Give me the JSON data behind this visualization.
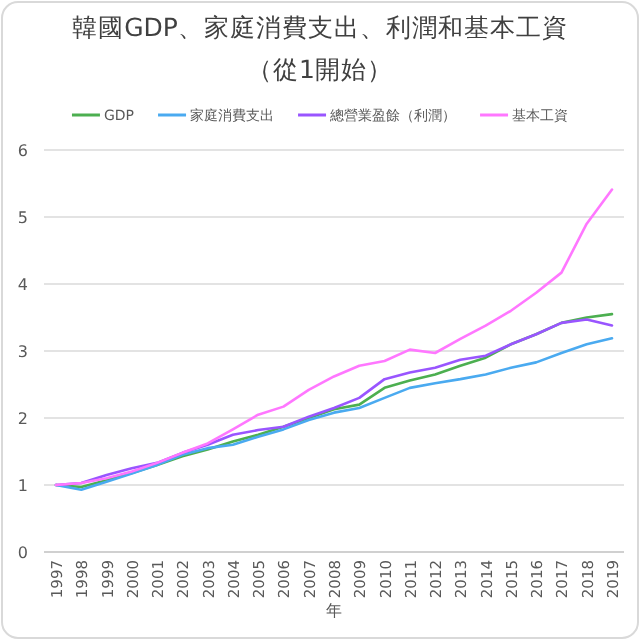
{
  "chart_data": {
    "type": "line",
    "title": "韓國GDP、家庭消費支出、利潤和基本工資",
    "subtitle": "（從1開始）",
    "xlabel": "年",
    "categories": [
      "1997",
      "1998",
      "1999",
      "2000",
      "2001",
      "2002",
      "2003",
      "2004",
      "2005",
      "2006",
      "2007",
      "2008",
      "2009",
      "2010",
      "2011",
      "2012",
      "2013",
      "2014",
      "2015",
      "2016",
      "2017",
      "2018",
      "2019"
    ],
    "ylim": [
      0,
      6
    ],
    "yticks": [
      0,
      1,
      2,
      3,
      4,
      5,
      6
    ],
    "grid": "y",
    "legend": "top",
    "line_style": "solid",
    "marker": "none",
    "series": [
      {
        "name": "GDP",
        "color": "#4caf50",
        "values": [
          1,
          0.97,
          1.07,
          1.18,
          1.3,
          1.43,
          1.53,
          1.65,
          1.75,
          1.87,
          2.0,
          2.13,
          2.2,
          2.45,
          2.56,
          2.65,
          2.78,
          2.9,
          3.1,
          3.25,
          3.42,
          3.5,
          3.55
        ]
      },
      {
        "name": "家庭消費支出",
        "color": "#4aaaf0",
        "values": [
          1.0,
          0.93,
          1.05,
          1.17,
          1.3,
          1.45,
          1.55,
          1.6,
          1.72,
          1.83,
          1.97,
          2.08,
          2.15,
          2.3,
          2.45,
          2.52,
          2.58,
          2.65,
          2.75,
          2.83,
          2.97,
          3.1,
          3.19
        ]
      },
      {
        "name": "總營業盈餘（利潤）",
        "color": "#9955ff",
        "values": [
          1.0,
          1.03,
          1.15,
          1.25,
          1.33,
          1.48,
          1.6,
          1.75,
          1.82,
          1.87,
          2.02,
          2.15,
          2.3,
          2.58,
          2.68,
          2.75,
          2.87,
          2.93,
          3.1,
          3.25,
          3.42,
          3.47,
          3.38
        ]
      },
      {
        "name": "基本工資",
        "color": "#ff77ff",
        "values": [
          1,
          1.03,
          1.1,
          1.2,
          1.33,
          1.48,
          1.62,
          1.83,
          2.05,
          2.17,
          2.42,
          2.62,
          2.78,
          2.85,
          3.02,
          2.97,
          3.18,
          3.38,
          3.6,
          3.87,
          4.17,
          4.9,
          5.41
        ]
      }
    ]
  }
}
